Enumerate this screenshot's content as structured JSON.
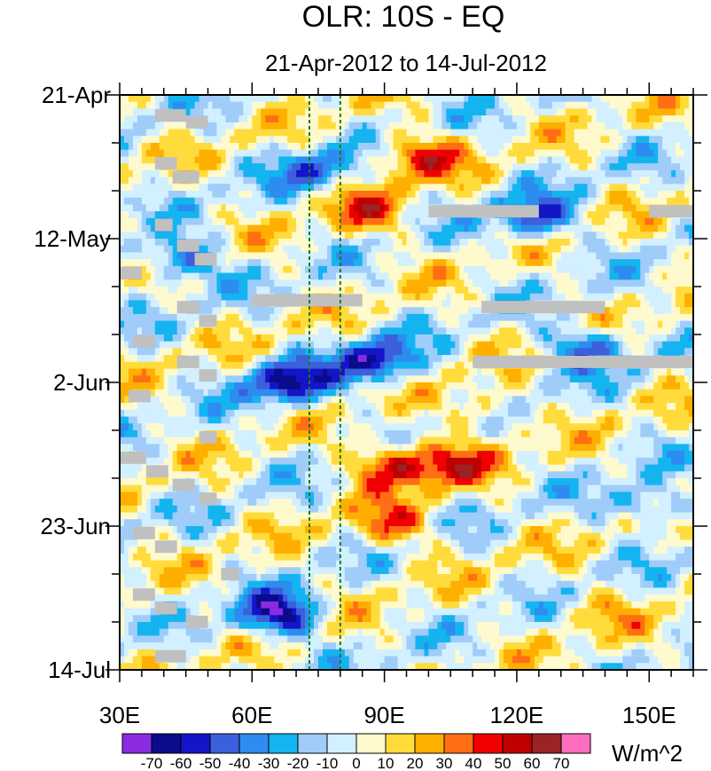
{
  "chart_data": {
    "type": "heatmap",
    "title": "OLR: 10S - EQ",
    "subtitle": "21-Apr-2012 to 14-Jul-2012",
    "x_axis": {
      "label": "",
      "range": [
        30,
        160
      ],
      "ticks": [
        {
          "value": 30,
          "label": "30E"
        },
        {
          "value": 60,
          "label": "60E"
        },
        {
          "value": 90,
          "label": "90E"
        },
        {
          "value": 120,
          "label": "120E"
        },
        {
          "value": 150,
          "label": "150E"
        }
      ]
    },
    "y_axis": {
      "label": "",
      "range_days": [
        0,
        84
      ],
      "orientation": "top-to-bottom",
      "ticks": [
        {
          "day": 0,
          "label": "21-Apr"
        },
        {
          "day": 21,
          "label": "12-May"
        },
        {
          "day": 42,
          "label": "2-Jun"
        },
        {
          "day": 63,
          "label": "23-Jun"
        },
        {
          "day": 84,
          "label": "14-Jul"
        }
      ]
    },
    "reference_lines_lon": [
      73,
      80
    ],
    "colorbar": {
      "units": "W/m^2",
      "labels": [
        "-70",
        "-60",
        "-50",
        "-40",
        "-30",
        "-20",
        "-10",
        "0",
        "10",
        "20",
        "30",
        "40",
        "50",
        "60",
        "70"
      ],
      "colors": [
        "#8A2BE2",
        "#0B0B8C",
        "#1414C8",
        "#3C5FDC",
        "#2D8CF0",
        "#14B4F0",
        "#A0CCFA",
        "#D2F0FF",
        "#FFFACD",
        "#FFDC3C",
        "#FFAF00",
        "#FF6E14",
        "#F00000",
        "#BE0000",
        "#9B2323",
        "#FF6EBE"
      ]
    },
    "missing_color": "#C0C0C0",
    "features": [
      {
        "lon": 98,
        "day": 9,
        "value": 45
      },
      {
        "lon": 86,
        "day": 17,
        "value": 35
      },
      {
        "lon": 92,
        "day": 54,
        "value": 55
      },
      {
        "lon": 106,
        "day": 54,
        "value": 38
      },
      {
        "lon": 92,
        "day": 63,
        "value": 35
      },
      {
        "lon": 68,
        "day": 42,
        "value": -62
      },
      {
        "lon": 88,
        "day": 39,
        "value": -60
      },
      {
        "lon": 66,
        "day": 76,
        "value": -65
      },
      {
        "lon": 44,
        "day": 24,
        "value": -45
      },
      {
        "lon": 124,
        "day": 18,
        "value": -50
      },
      {
        "lon": 136,
        "day": 37,
        "value": -45
      },
      {
        "lon": 74,
        "day": 11,
        "value": -38
      },
      {
        "lon": 150,
        "day": 60,
        "value": -35
      },
      {
        "lon": 112,
        "day": 46,
        "value": 22
      },
      {
        "lon": 140,
        "day": 75,
        "value": 15
      }
    ],
    "missing_segments": [
      {
        "lon_start": 100,
        "lon_end": 125,
        "day": 17
      },
      {
        "lon_start": 150,
        "lon_end": 160,
        "day": 17
      },
      {
        "lon_start": 60,
        "lon_end": 85,
        "day": 30
      },
      {
        "lon_start": 112,
        "lon_end": 140,
        "day": 31
      },
      {
        "lon_start": 110,
        "lon_end": 160,
        "day": 39
      },
      {
        "lon_start": 38,
        "lon_end": 45,
        "day": 3
      },
      {
        "lon_start": 45,
        "lon_end": 50,
        "day": 4
      },
      {
        "lon_start": 38,
        "lon_end": 43,
        "day": 10
      },
      {
        "lon_start": 42,
        "lon_end": 48,
        "day": 12
      },
      {
        "lon_start": 38,
        "lon_end": 42,
        "day": 19
      },
      {
        "lon_start": 43,
        "lon_end": 48,
        "day": 22
      },
      {
        "lon_start": 47,
        "lon_end": 52,
        "day": 24
      },
      {
        "lon_start": 30,
        "lon_end": 35,
        "day": 26
      },
      {
        "lon_start": 43,
        "lon_end": 48,
        "day": 31
      },
      {
        "lon_start": 48,
        "lon_end": 52,
        "day": 33
      },
      {
        "lon_start": 33,
        "lon_end": 38,
        "day": 36
      },
      {
        "lon_start": 43,
        "lon_end": 48,
        "day": 39
      },
      {
        "lon_start": 48,
        "lon_end": 52,
        "day": 41
      },
      {
        "lon_start": 32,
        "lon_end": 37,
        "day": 44
      },
      {
        "lon_start": 48,
        "lon_end": 52,
        "day": 50
      },
      {
        "lon_start": 30,
        "lon_end": 36,
        "day": 53
      },
      {
        "lon_start": 36,
        "lon_end": 41,
        "day": 55
      },
      {
        "lon_start": 42,
        "lon_end": 47,
        "day": 57
      },
      {
        "lon_start": 48,
        "lon_end": 52,
        "day": 59
      },
      {
        "lon_start": 33,
        "lon_end": 38,
        "day": 64
      },
      {
        "lon_start": 38,
        "lon_end": 43,
        "day": 66
      },
      {
        "lon_start": 53,
        "lon_end": 57,
        "day": 70
      },
      {
        "lon_start": 33,
        "lon_end": 38,
        "day": 73
      },
      {
        "lon_start": 38,
        "lon_end": 43,
        "day": 75
      },
      {
        "lon_start": 45,
        "lon_end": 50,
        "day": 77
      },
      {
        "lon_start": 38,
        "lon_end": 45,
        "day": 82
      }
    ]
  }
}
